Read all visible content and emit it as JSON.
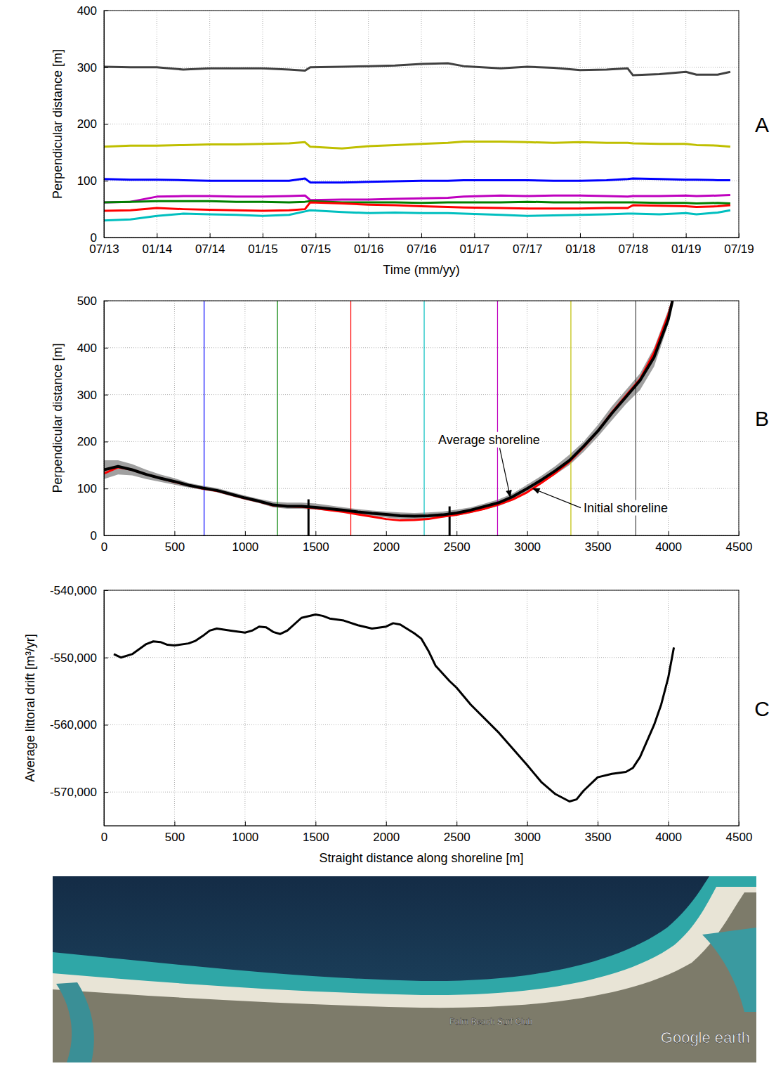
{
  "chart_data": [
    {
      "type": "line",
      "panel": "A",
      "y_label": "Perpendicular distance  [m]",
      "x_label": "Time  (mm/yy)",
      "xlim": [
        2013.5,
        2019.5
      ],
      "xticks": [
        {
          "value": 2013.5,
          "label": "07/13"
        },
        {
          "value": 2014.0,
          "label": "01/14"
        },
        {
          "value": 2014.5,
          "label": "07/14"
        },
        {
          "value": 2015.0,
          "label": "01/15"
        },
        {
          "value": 2015.5,
          "label": "07/15"
        },
        {
          "value": 2016.0,
          "label": "01/16"
        },
        {
          "value": 2016.5,
          "label": "07/16"
        },
        {
          "value": 2017.0,
          "label": "01/17"
        },
        {
          "value": 2017.5,
          "label": "07/17"
        },
        {
          "value": 2018.0,
          "label": "01/18"
        },
        {
          "value": 2018.5,
          "label": "07/18"
        },
        {
          "value": 2019.0,
          "label": "01/19"
        },
        {
          "value": 2019.5,
          "label": "07/19"
        }
      ],
      "ylim": [
        0,
        400
      ],
      "yticks": [
        0,
        100,
        200,
        300,
        400
      ],
      "grid": true,
      "x": [
        2013.5,
        2013.75,
        2014.0,
        2014.25,
        2014.5,
        2014.75,
        2015.0,
        2015.25,
        2015.4,
        2015.45,
        2015.75,
        2016.0,
        2016.25,
        2016.5,
        2016.75,
        2016.9,
        2017.25,
        2017.5,
        2017.75,
        2018.0,
        2018.25,
        2018.45,
        2018.5,
        2018.75,
        2019.0,
        2019.1,
        2019.3,
        2019.42
      ],
      "series": [
        {
          "color": "#404040",
          "values": [
            301,
            300,
            300,
            296,
            298,
            298,
            298,
            296,
            294,
            300,
            301,
            302,
            303,
            306,
            307,
            302,
            298,
            301,
            299,
            295,
            296,
            298,
            286,
            288,
            292,
            287,
            287,
            292
          ]
        },
        {
          "color": "#bfbf00",
          "values": [
            160,
            162,
            162,
            163,
            164,
            164,
            165,
            166,
            168,
            160,
            157,
            161,
            163,
            165,
            167,
            169,
            169,
            168,
            167,
            168,
            167,
            167,
            166,
            165,
            165,
            163,
            162,
            160
          ]
        },
        {
          "color": "#0000ff",
          "values": [
            103,
            102,
            102,
            101,
            100,
            100,
            100,
            100,
            104,
            97,
            97,
            98,
            99,
            100,
            100,
            101,
            101,
            101,
            100,
            100,
            101,
            103,
            104,
            103,
            102,
            102,
            101,
            101
          ]
        },
        {
          "color": "#bf00bf",
          "values": [
            62,
            63,
            72,
            73,
            73,
            72,
            72,
            73,
            74,
            66,
            67,
            67,
            68,
            69,
            70,
            72,
            74,
            73,
            74,
            74,
            73,
            72,
            73,
            73,
            74,
            73,
            74,
            75
          ]
        },
        {
          "color": "#008000",
          "values": [
            62,
            63,
            64,
            64,
            64,
            63,
            63,
            62,
            63,
            64,
            62,
            62,
            62,
            61,
            62,
            62,
            62,
            63,
            62,
            62,
            62,
            62,
            62,
            61,
            61,
            60,
            61,
            60
          ]
        },
        {
          "color": "#ff0000",
          "values": [
            47,
            48,
            52,
            50,
            49,
            48,
            47,
            48,
            50,
            62,
            60,
            58,
            57,
            55,
            54,
            53,
            52,
            51,
            51,
            51,
            52,
            52,
            57,
            56,
            55,
            54,
            55,
            57
          ]
        },
        {
          "color": "#00bfbf",
          "values": [
            30,
            32,
            38,
            42,
            41,
            40,
            38,
            40,
            46,
            48,
            45,
            43,
            44,
            43,
            43,
            42,
            40,
            38,
            39,
            40,
            41,
            42,
            42,
            41,
            43,
            41,
            44,
            48
          ]
        }
      ]
    },
    {
      "type": "line",
      "panel": "B",
      "y_label": "Perpendicular distance  [m]",
      "xlim": [
        0,
        4500
      ],
      "xticks": [
        0,
        500,
        1000,
        1500,
        2000,
        2500,
        3000,
        3500,
        4000,
        4500
      ],
      "ylim": [
        0,
        500
      ],
      "yticks": [
        0,
        100,
        200,
        300,
        400,
        500
      ],
      "grid": true,
      "x": [
        0,
        100,
        200,
        300,
        400,
        500,
        600,
        700,
        800,
        900,
        1000,
        1100,
        1200,
        1300,
        1400,
        1500,
        1600,
        1700,
        1800,
        1900,
        2000,
        2100,
        2200,
        2300,
        2400,
        2500,
        2600,
        2700,
        2800,
        2900,
        3000,
        3100,
        3200,
        3300,
        3400,
        3500,
        3600,
        3700,
        3800,
        3900,
        4000,
        4030
      ],
      "band": {
        "color": "#a0a0a0",
        "low": [
          120,
          130,
          128,
          120,
          114,
          108,
          102,
          97,
          92,
          84,
          76,
          69,
          60,
          57,
          57,
          55,
          52,
          49,
          45,
          41,
          38,
          35,
          34,
          36,
          38,
          42,
          48,
          55,
          63,
          75,
          92,
          110,
          130,
          150,
          178,
          210,
          245,
          280,
          310,
          360,
          450,
          500
        ],
        "high": [
          160,
          160,
          152,
          140,
          130,
          122,
          112,
          106,
          101,
          93,
          85,
          78,
          72,
          70,
          70,
          68,
          64,
          60,
          56,
          53,
          51,
          49,
          48,
          49,
          51,
          55,
          60,
          68,
          77,
          90,
          108,
          127,
          148,
          172,
          200,
          235,
          275,
          310,
          345,
          400,
          480,
          510
        ]
      },
      "transects": [
        {
          "x": 710,
          "color": "#0000ff"
        },
        {
          "x": 1230,
          "color": "#008000"
        },
        {
          "x": 1750,
          "color": "#ff0000"
        },
        {
          "x": 2270,
          "color": "#00bfbf"
        },
        {
          "x": 2790,
          "color": "#bf00bf"
        },
        {
          "x": 3310,
          "color": "#bfbf00"
        },
        {
          "x": 3770,
          "color": "#404040"
        }
      ],
      "structures": [
        {
          "x": 1450,
          "top": 77
        },
        {
          "x": 2450,
          "top": 62
        }
      ],
      "series": [
        {
          "color": "#ff0000",
          "values": [
            132,
            145,
            140,
            130,
            122,
            114,
            107,
            100,
            95,
            87,
            79,
            72,
            64,
            62,
            61,
            58,
            54,
            50,
            45,
            40,
            35,
            32,
            33,
            35,
            40,
            44,
            50,
            57,
            66,
            77,
            92,
            112,
            133,
            157,
            188,
            222,
            262,
            298,
            333,
            390,
            470,
            500
          ]
        },
        {
          "color": "#000000",
          "values": [
            140,
            147,
            140,
            130,
            122,
            115,
            107,
            101,
            96,
            88,
            80,
            73,
            65,
            62,
            62,
            60,
            57,
            54,
            50,
            47,
            45,
            42,
            41,
            42,
            44,
            48,
            54,
            62,
            70,
            83,
            100,
            118,
            138,
            160,
            190,
            222,
            260,
            295,
            330,
            380,
            460,
            500
          ]
        }
      ],
      "annotations": [
        {
          "text": "Average shoreline",
          "x": 2880,
          "y": 82,
          "text_x": 2370,
          "text_y": 195
        },
        {
          "text": "Initial shoreline",
          "x": 3040,
          "y": 100,
          "text_x": 3400,
          "text_y": 50
        }
      ]
    },
    {
      "type": "line",
      "panel": "C",
      "y_label": "Average littoral drift [m³/yr]",
      "x_label": "Straight distance along shoreline [m]",
      "xlim": [
        0,
        4500
      ],
      "xticks": [
        0,
        500,
        1000,
        1500,
        2000,
        2500,
        3000,
        3500,
        4000,
        4500
      ],
      "ylim": [
        -575000,
        -540000
      ],
      "yticks": [
        {
          "value": -570000,
          "label": "-570,000"
        },
        {
          "value": -560000,
          "label": "-560,000"
        },
        {
          "value": -550000,
          "label": "-550,000"
        },
        {
          "value": -540000,
          "label": "-540,000"
        }
      ],
      "grid": true,
      "x": [
        70,
        120,
        200,
        300,
        350,
        400,
        450,
        500,
        600,
        650,
        700,
        750,
        800,
        900,
        1000,
        1050,
        1100,
        1150,
        1200,
        1250,
        1300,
        1400,
        1500,
        1550,
        1600,
        1700,
        1800,
        1900,
        2000,
        2050,
        2100,
        2200,
        2250,
        2300,
        2350,
        2450,
        2500,
        2600,
        2800,
        3000,
        3100,
        3200,
        3300,
        3350,
        3400,
        3500,
        3600,
        3700,
        3750,
        3800,
        3900,
        3950,
        4000,
        4040
      ],
      "series": [
        {
          "color": "#000000",
          "values": [
            -549500,
            -550000,
            -549500,
            -548000,
            -547600,
            -547700,
            -548100,
            -548200,
            -547900,
            -547500,
            -546800,
            -546000,
            -545700,
            -546000,
            -546300,
            -546000,
            -545400,
            -545500,
            -546200,
            -546500,
            -546000,
            -544100,
            -543600,
            -543800,
            -544200,
            -544500,
            -545200,
            -545700,
            -545400,
            -544900,
            -545100,
            -546400,
            -547200,
            -549000,
            -551200,
            -553500,
            -554500,
            -557000,
            -561200,
            -566000,
            -568500,
            -570300,
            -571400,
            -571100,
            -569800,
            -567800,
            -567300,
            -567000,
            -566400,
            -564800,
            -560000,
            -557000,
            -553000,
            -548500
          ]
        }
      ]
    }
  ],
  "image": {
    "labels": [
      "Palm Beach Surf Club",
      "Google earth"
    ]
  }
}
